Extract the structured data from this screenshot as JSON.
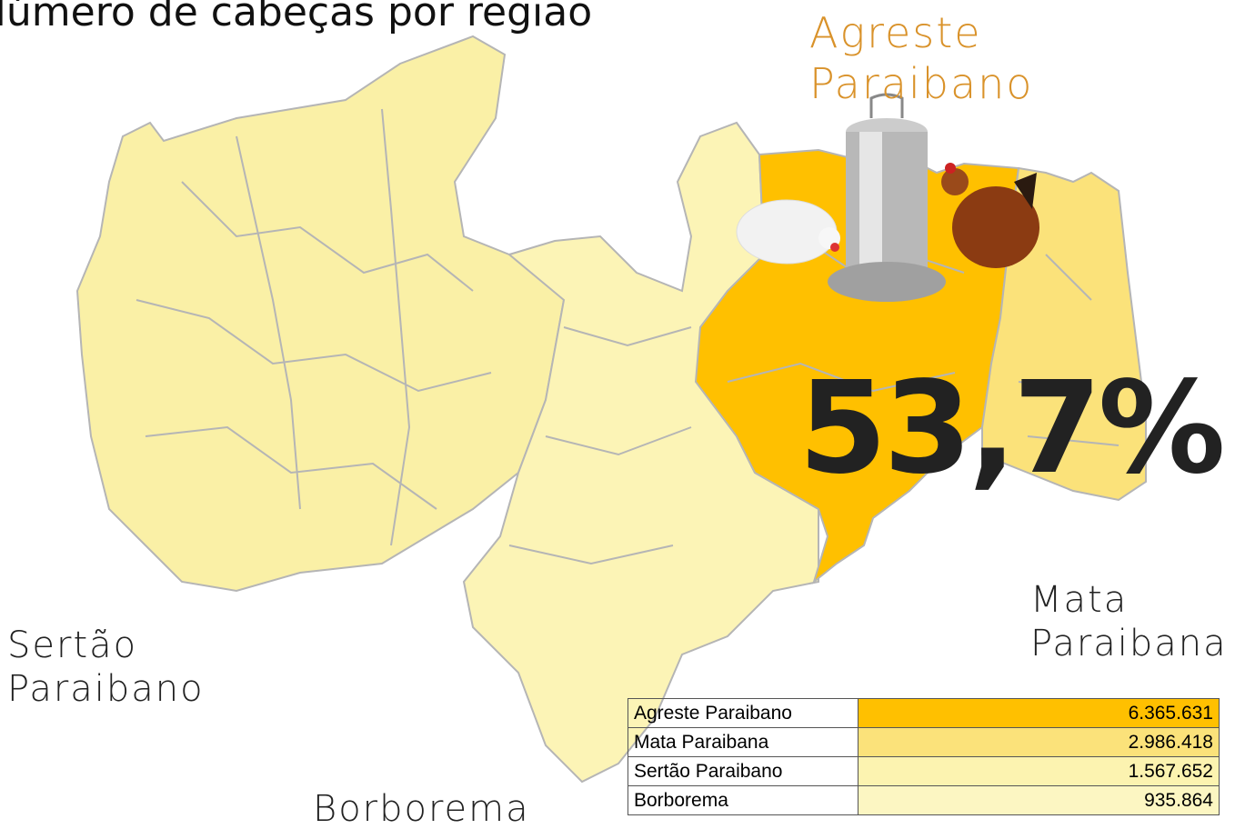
{
  "title": "Número de cabeças por região",
  "regions": [
    {
      "lines": [
        "Agreste",
        "Paraibano"
      ]
    },
    {
      "lines": [
        "Mata",
        "Paraibana"
      ]
    },
    {
      "lines": [
        "Sertão",
        "Paraibano"
      ]
    },
    {
      "lines": [
        "Borborema"
      ]
    }
  ],
  "highlight": "53,7%",
  "table": {
    "rows": [
      [
        "Agreste Paraibano",
        "6.365.631"
      ],
      [
        "Mata Paraibana",
        "2.986.418"
      ],
      [
        "Sertão Paraibano",
        "1.567.652"
      ],
      [
        "Borborema",
        "935.864"
      ]
    ]
  }
}
